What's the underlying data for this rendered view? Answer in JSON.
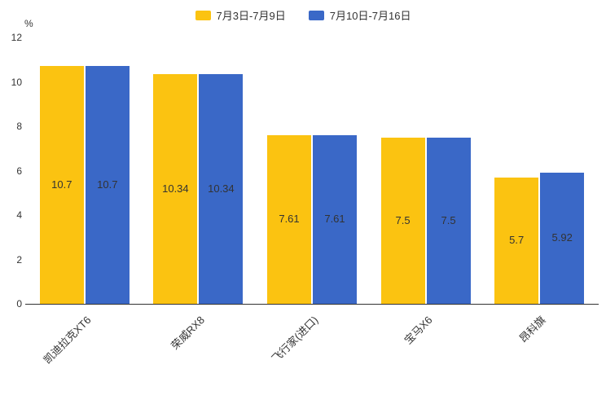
{
  "chart_data": {
    "type": "bar",
    "title": "",
    "xlabel": "",
    "ylabel": "%",
    "categories": [
      "凯迪拉克XT6",
      "荣威RX8",
      "飞行家(进口)",
      "宝马X6",
      "昂科旗"
    ],
    "series": [
      {
        "name": "7月3日-7月9日",
        "color": "#FBC311",
        "values": [
          10.7,
          10.34,
          7.61,
          7.5,
          5.7
        ]
      },
      {
        "name": "7月10日-7月16日",
        "color": "#3A68C7",
        "values": [
          10.7,
          10.34,
          7.61,
          7.5,
          5.92
        ]
      }
    ],
    "ylim": [
      0,
      12
    ],
    "ytick_step": 2,
    "grid": false,
    "legend_position": "top"
  },
  "colors": {
    "axis": "#333333",
    "text": "#333333",
    "background": "#ffffff"
  }
}
